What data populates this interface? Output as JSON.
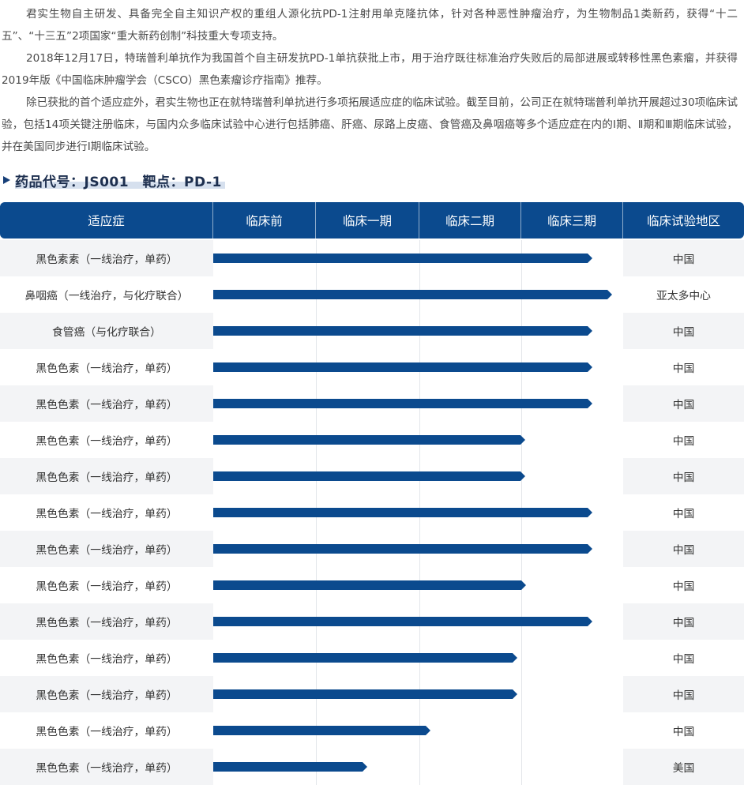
{
  "intro": {
    "paragraphs": [
      "君实生物自主研发、具备完全自主知识产权的重组人源化抗PD-1注射用单克隆抗体，针对各种恶性肿瘤治疗，为生物制品1类新药，获得“十二五”、“十三五”2项国家“重大新药创制”科技重大专项支持。",
      "2018年12月17日，特瑞普利单抗作为我国首个自主研发抗PD-1单抗获批上市，用于治疗既往标准治疗失败后的局部进展或转移性黑色素瘤，并获得2019年版《中国临床肿瘤学会（CSCO）黑色素瘤诊疗指南》推荐。",
      "除已获批的首个适应症外，君实生物也正在就特瑞普利单抗进行多项拓展适应症的临床试验。截至目前，公司正在就特瑞普利单抗开展超过30项临床试验，包括14项关键注册临床，与国内众多临床试验中心进行包括肺癌、肝癌、尿路上皮癌、食管癌及鼻咽癌等多个适应症在内的Ⅰ期、Ⅱ期和Ⅲ期临床试验，并在美国同步进行Ⅰ期临床试验。"
    ]
  },
  "section": {
    "title": "药品代号：JS001　靶点：PD-1"
  },
  "table": {
    "headers": {
      "indication": "适应症",
      "preclinical": "临床前",
      "phase1": "临床一期",
      "phase2": "临床二期",
      "phase3": "临床三期",
      "region": "临床试验地区"
    },
    "rows": [
      {
        "indication": "黑色素素（一线治疗，单药）",
        "progress": 0.925,
        "region": "中国"
      },
      {
        "indication": "鼻咽癌（一线治疗，与化疗联合）",
        "progress": 0.973,
        "region": "亚太多中心"
      },
      {
        "indication": "食管癌（与化疗联合）",
        "progress": 0.925,
        "region": "中国"
      },
      {
        "indication": "黑色色素（一线治疗，单药）",
        "progress": 0.925,
        "region": "中国"
      },
      {
        "indication": "黑色色素（一线治疗，单药）",
        "progress": 0.925,
        "region": "中国"
      },
      {
        "indication": "黑色色素（一线治疗，单药）",
        "progress": 0.761,
        "region": "中国"
      },
      {
        "indication": "黑色色素（一线治疗，单药）",
        "progress": 0.761,
        "region": "中国"
      },
      {
        "indication": "黑色色素（一线治疗，单药）",
        "progress": 0.925,
        "region": "中国"
      },
      {
        "indication": "黑色色素（一线治疗，单药）",
        "progress": 0.925,
        "region": "中国"
      },
      {
        "indication": "黑色色素（一线治疗，单药）",
        "progress": 0.763,
        "region": "中国"
      },
      {
        "indication": "黑色色素（一线治疗，单药）",
        "progress": 0.925,
        "region": "中国"
      },
      {
        "indication": "黑色色素（一线治疗，单药）",
        "progress": 0.742,
        "region": "中国"
      },
      {
        "indication": "黑色色素（一线治疗，单药）",
        "progress": 0.742,
        "region": "中国"
      },
      {
        "indication": "黑色色素（一线治疗，单药）",
        "progress": 0.53,
        "region": "中国"
      },
      {
        "indication": "黑色色素（一线治疗，单药）",
        "progress": 0.375,
        "region": "美国"
      }
    ]
  },
  "colors": {
    "brand": "#0b4a8e",
    "row_alt": "#f3f4f6",
    "title_highlight": "#d6e0ee"
  }
}
